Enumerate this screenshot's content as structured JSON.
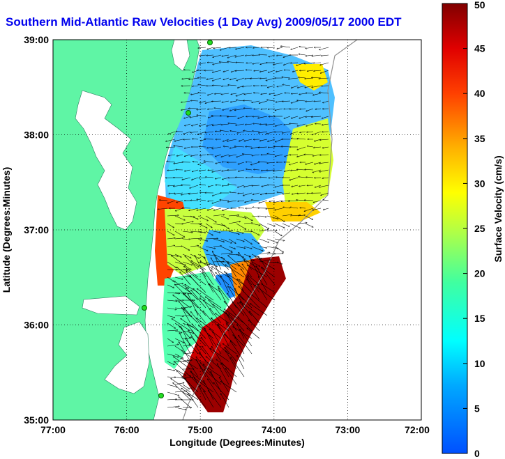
{
  "title": "Southern Mid-Atlantic Raw Velocities (1 Day Avg) 2009/05/17 2000 EDT",
  "map": {
    "xlabel": "Longitude (Degrees:Minutes)",
    "ylabel": "Latitude (Degrees:Minutes)",
    "xticks": [
      "77:00",
      "76:00",
      "75:00",
      "74:00",
      "73:00",
      "72:00"
    ],
    "yticks": [
      "35:00",
      "36:00",
      "37:00",
      "38:00",
      "39:00"
    ],
    "xlim": [
      -77,
      -72
    ],
    "ylim": [
      35,
      39
    ],
    "grid": "dotted",
    "land_color": "#5ff5a5",
    "station_color": "#22dd22"
  },
  "colorbar": {
    "label": "Surface Velocity (cm/s)",
    "ticks": [
      "0",
      "5",
      "10",
      "15",
      "20",
      "25",
      "30",
      "35",
      "40",
      "45",
      "50"
    ],
    "range": [
      0,
      50
    ],
    "colormap": "jet"
  }
}
